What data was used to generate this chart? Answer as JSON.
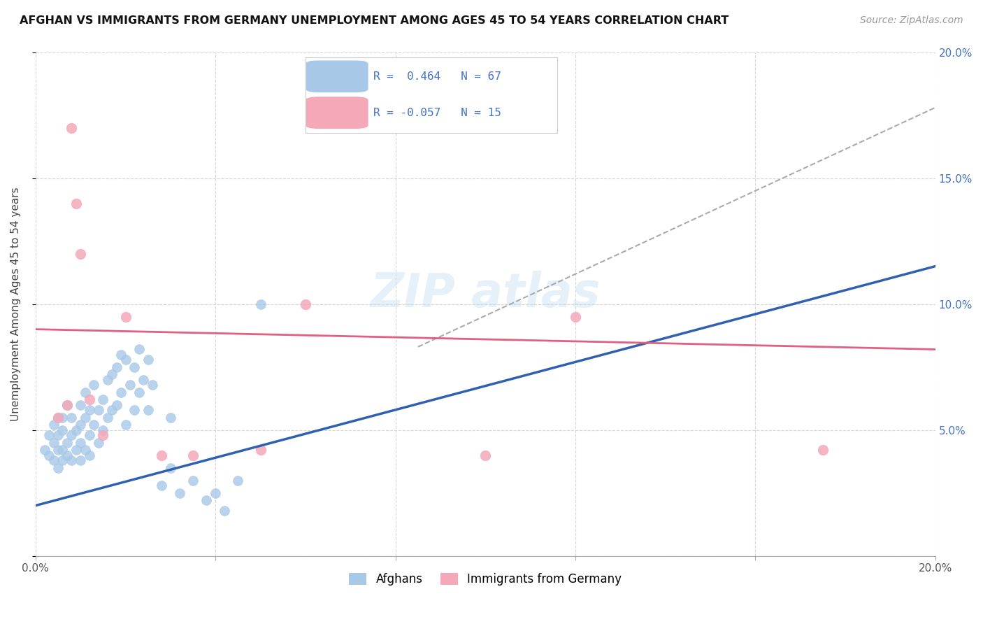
{
  "title": "AFGHAN VS IMMIGRANTS FROM GERMANY UNEMPLOYMENT AMONG AGES 45 TO 54 YEARS CORRELATION CHART",
  "source": "Source: ZipAtlas.com",
  "ylabel": "Unemployment Among Ages 45 to 54 years",
  "xlim": [
    0.0,
    0.2
  ],
  "ylim": [
    0.0,
    0.2
  ],
  "blue_color": "#A8C8E8",
  "pink_color": "#F4A8B8",
  "blue_line_color": "#3060B0",
  "pink_line_color": "#E06080",
  "dashed_line_color": "#AAAAAA",
  "legend_R1": "0.464",
  "legend_N1": "67",
  "legend_R2": "-0.057",
  "legend_N2": "15",
  "legend_label1": "Afghans",
  "legend_label2": "Immigrants from Germany",
  "blue_trend_x": [
    0.0,
    0.2
  ],
  "blue_trend_y": [
    0.02,
    0.115
  ],
  "pink_trend_x": [
    0.0,
    0.2
  ],
  "pink_trend_y": [
    0.09,
    0.082
  ],
  "dashed_trend_x": [
    0.085,
    0.2
  ],
  "dashed_trend_y": [
    0.083,
    0.178
  ],
  "blue_scatter_x": [
    0.002,
    0.003,
    0.003,
    0.004,
    0.004,
    0.004,
    0.005,
    0.005,
    0.005,
    0.005,
    0.006,
    0.006,
    0.006,
    0.006,
    0.007,
    0.007,
    0.007,
    0.008,
    0.008,
    0.008,
    0.009,
    0.009,
    0.01,
    0.01,
    0.01,
    0.01,
    0.011,
    0.011,
    0.011,
    0.012,
    0.012,
    0.012,
    0.013,
    0.013,
    0.014,
    0.014,
    0.015,
    0.015,
    0.016,
    0.016,
    0.017,
    0.017,
    0.018,
    0.018,
    0.019,
    0.019,
    0.02,
    0.02,
    0.021,
    0.022,
    0.022,
    0.023,
    0.023,
    0.024,
    0.025,
    0.025,
    0.026,
    0.028,
    0.03,
    0.03,
    0.032,
    0.035,
    0.038,
    0.04,
    0.042,
    0.045,
    0.05
  ],
  "blue_scatter_y": [
    0.042,
    0.04,
    0.048,
    0.038,
    0.045,
    0.052,
    0.035,
    0.042,
    0.048,
    0.055,
    0.038,
    0.042,
    0.05,
    0.055,
    0.04,
    0.045,
    0.06,
    0.038,
    0.048,
    0.055,
    0.042,
    0.05,
    0.038,
    0.045,
    0.052,
    0.06,
    0.042,
    0.055,
    0.065,
    0.04,
    0.048,
    0.058,
    0.052,
    0.068,
    0.045,
    0.058,
    0.05,
    0.062,
    0.055,
    0.07,
    0.058,
    0.072,
    0.06,
    0.075,
    0.065,
    0.08,
    0.052,
    0.078,
    0.068,
    0.058,
    0.075,
    0.065,
    0.082,
    0.07,
    0.058,
    0.078,
    0.068,
    0.028,
    0.035,
    0.055,
    0.025,
    0.03,
    0.022,
    0.025,
    0.018,
    0.03,
    0.1
  ],
  "pink_scatter_x": [
    0.005,
    0.007,
    0.008,
    0.009,
    0.01,
    0.012,
    0.015,
    0.02,
    0.028,
    0.035,
    0.05,
    0.06,
    0.1,
    0.12,
    0.175
  ],
  "pink_scatter_y": [
    0.055,
    0.06,
    0.17,
    0.14,
    0.12,
    0.062,
    0.048,
    0.095,
    0.04,
    0.04,
    0.042,
    0.1,
    0.04,
    0.095,
    0.042
  ]
}
